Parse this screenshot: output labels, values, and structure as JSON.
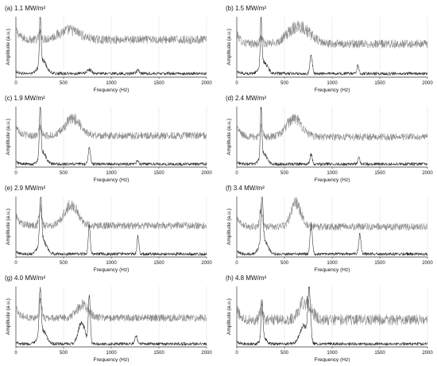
{
  "chart_data": [
    {
      "type": "line",
      "title": "(a) 1.1 MW/m²",
      "xlabel": "Frequency (Hz)",
      "ylabel": "Amplitude (a.u.)",
      "xlim": [
        0,
        2000
      ],
      "x_ticks": [
        0,
        500,
        1000,
        1500,
        2000
      ],
      "grid": "vertical",
      "series": [
        {
          "color": "#8c8c8c",
          "baseline": 0.62,
          "noise": 0.07,
          "peaks": [
            {
              "x": 255,
              "height": 0.1,
              "width": 14
            },
            {
              "x": 560,
              "height": 0.16,
              "width": 110
            }
          ]
        },
        {
          "color": "#2a2a2a",
          "baseline": 0.06,
          "noise": 0.025,
          "peaks": [
            {
              "x": 255,
              "height": 0.85,
              "width": 8
            },
            {
              "x": 280,
              "height": 0.22,
              "width": 40
            },
            {
              "x": 770,
              "height": 0.06,
              "width": 25
            },
            {
              "x": 1280,
              "height": 0.05,
              "width": 15
            }
          ]
        }
      ]
    },
    {
      "type": "line",
      "title": "(b) 1.5 MW/m²",
      "xlabel": "Frequency (Hz)",
      "ylabel": "Amplitude (a.u.)",
      "xlim": [
        0,
        2000
      ],
      "x_ticks": [
        0,
        500,
        1000,
        1500,
        2000
      ],
      "grid": "vertical",
      "series": [
        {
          "color": "#8c8c8c",
          "baseline": 0.55,
          "noise": 0.07,
          "peaks": [
            {
              "x": 255,
              "height": 0.12,
              "width": 14
            },
            {
              "x": 650,
              "height": 0.3,
              "width": 110
            }
          ]
        },
        {
          "color": "#2a2a2a",
          "baseline": 0.06,
          "noise": 0.025,
          "peaks": [
            {
              "x": 255,
              "height": 0.8,
              "width": 8
            },
            {
              "x": 280,
              "height": 0.2,
              "width": 40
            },
            {
              "x": 780,
              "height": 0.3,
              "width": 12
            },
            {
              "x": 1270,
              "height": 0.14,
              "width": 10
            }
          ]
        }
      ]
    },
    {
      "type": "line",
      "title": "(c) 1.9 MW/m²",
      "xlabel": "Frequency (Hz)",
      "ylabel": "Amplitude (a.u.)",
      "xlim": [
        0,
        2000
      ],
      "x_ticks": [
        0,
        500,
        1000,
        1500,
        2000
      ],
      "grid": "vertical",
      "series": [
        {
          "color": "#8c8c8c",
          "baseline": 0.52,
          "noise": 0.06,
          "peaks": [
            {
              "x": 255,
              "height": 0.14,
              "width": 14
            },
            {
              "x": 600,
              "height": 0.28,
              "width": 80
            }
          ]
        },
        {
          "color": "#2a2a2a",
          "baseline": 0.05,
          "noise": 0.025,
          "peaks": [
            {
              "x": 255,
              "height": 0.85,
              "width": 8
            },
            {
              "x": 280,
              "height": 0.2,
              "width": 35
            },
            {
              "x": 770,
              "height": 0.28,
              "width": 12
            },
            {
              "x": 1275,
              "height": 0.07,
              "width": 10
            }
          ]
        }
      ]
    },
    {
      "type": "line",
      "title": "(d) 2.4 MW/m²",
      "xlabel": "Frequency (Hz)",
      "ylabel": "Amplitude (a.u.)",
      "xlim": [
        0,
        2000
      ],
      "x_ticks": [
        0,
        500,
        1000,
        1500,
        2000
      ],
      "grid": "vertical",
      "series": [
        {
          "color": "#8c8c8c",
          "baseline": 0.5,
          "noise": 0.06,
          "peaks": [
            {
              "x": 255,
              "height": 0.18,
              "width": 14
            },
            {
              "x": 600,
              "height": 0.3,
              "width": 80
            }
          ]
        },
        {
          "color": "#2a2a2a",
          "baseline": 0.05,
          "noise": 0.025,
          "peaks": [
            {
              "x": 255,
              "height": 0.85,
              "width": 8
            },
            {
              "x": 280,
              "height": 0.18,
              "width": 35
            },
            {
              "x": 780,
              "height": 0.16,
              "width": 12
            },
            {
              "x": 1280,
              "height": 0.1,
              "width": 10
            }
          ]
        }
      ]
    },
    {
      "type": "line",
      "title": "(e) 2.9 MW/m²",
      "xlabel": "Frequency (Hz)",
      "ylabel": "Amplitude (a.u.)",
      "xlim": [
        0,
        2000
      ],
      "x_ticks": [
        0,
        500,
        1000,
        1500,
        2000
      ],
      "grid": "vertical",
      "series": [
        {
          "color": "#8c8c8c",
          "baseline": 0.52,
          "noise": 0.06,
          "peaks": [
            {
              "x": 255,
              "height": 0.3,
              "width": 14
            },
            {
              "x": 580,
              "height": 0.34,
              "width": 70
            }
          ]
        },
        {
          "color": "#2a2a2a",
          "baseline": 0.05,
          "noise": 0.025,
          "peaks": [
            {
              "x": 260,
              "height": 0.8,
              "width": 10
            },
            {
              "x": 275,
              "height": 0.25,
              "width": 40
            },
            {
              "x": 770,
              "height": 0.45,
              "width": 10
            },
            {
              "x": 1280,
              "height": 0.28,
              "width": 10
            }
          ]
        }
      ]
    },
    {
      "type": "line",
      "title": "(f) 3.4 MW/m²",
      "xlabel": "Frequency (Hz)",
      "ylabel": "Amplitude (a.u.)",
      "xlim": [
        0,
        2000
      ],
      "x_ticks": [
        0,
        500,
        1000,
        1500,
        2000
      ],
      "grid": "vertical",
      "series": [
        {
          "color": "#8c8c8c",
          "baseline": 0.5,
          "noise": 0.06,
          "peaks": [
            {
              "x": 255,
              "height": 0.3,
              "width": 14
            },
            {
              "x": 620,
              "height": 0.4,
              "width": 50
            }
          ]
        },
        {
          "color": "#2a2a2a",
          "baseline": 0.05,
          "noise": 0.025,
          "peaks": [
            {
              "x": 265,
              "height": 0.8,
              "width": 10
            },
            {
              "x": 280,
              "height": 0.25,
              "width": 40
            },
            {
              "x": 780,
              "height": 0.48,
              "width": 12
            },
            {
              "x": 1290,
              "height": 0.32,
              "width": 12
            }
          ]
        }
      ]
    },
    {
      "type": "line",
      "title": "(g) 4.0 MW/m²",
      "xlabel": "Frequency (Hz)",
      "ylabel": "Amplitude (a.u.)",
      "xlim": [
        0,
        2000
      ],
      "x_ticks": [
        0,
        500,
        1000,
        1500,
        2000
      ],
      "grid": "vertical",
      "series": [
        {
          "color": "#8c8c8c",
          "baseline": 0.48,
          "noise": 0.06,
          "peaks": [
            {
              "x": 255,
              "height": 0.3,
              "width": 14
            },
            {
              "x": 700,
              "height": 0.22,
              "width": 60
            }
          ]
        },
        {
          "color": "#2a2a2a",
          "baseline": 0.05,
          "noise": 0.025,
          "peaks": [
            {
              "x": 255,
              "height": 0.78,
              "width": 10
            },
            {
              "x": 280,
              "height": 0.22,
              "width": 40
            },
            {
              "x": 690,
              "height": 0.35,
              "width": 35
            },
            {
              "x": 770,
              "height": 0.8,
              "width": 10
            },
            {
              "x": 1260,
              "height": 0.14,
              "width": 12
            }
          ]
        }
      ]
    },
    {
      "type": "line",
      "title": "(h) 4.8 MW/m²",
      "xlabel": "Frequency (Hz)",
      "ylabel": "Amplitude (a.u.)",
      "xlim": [
        0,
        2000
      ],
      "x_ticks": [
        0,
        500,
        1000,
        1500,
        2000
      ],
      "grid": "vertical",
      "series": [
        {
          "color": "#8c8c8c",
          "baseline": 0.45,
          "noise": 0.09,
          "peaks": [
            {
              "x": 255,
              "height": 0.2,
              "width": 14
            },
            {
              "x": 720,
              "height": 0.3,
              "width": 60
            }
          ]
        },
        {
          "color": "#2a2a2a",
          "baseline": 0.05,
          "noise": 0.025,
          "peaks": [
            {
              "x": 265,
              "height": 0.6,
              "width": 10
            },
            {
              "x": 280,
              "height": 0.1,
              "width": 30
            },
            {
              "x": 760,
              "height": 0.85,
              "width": 14
            },
            {
              "x": 700,
              "height": 0.3,
              "width": 40
            }
          ]
        }
      ]
    }
  ]
}
